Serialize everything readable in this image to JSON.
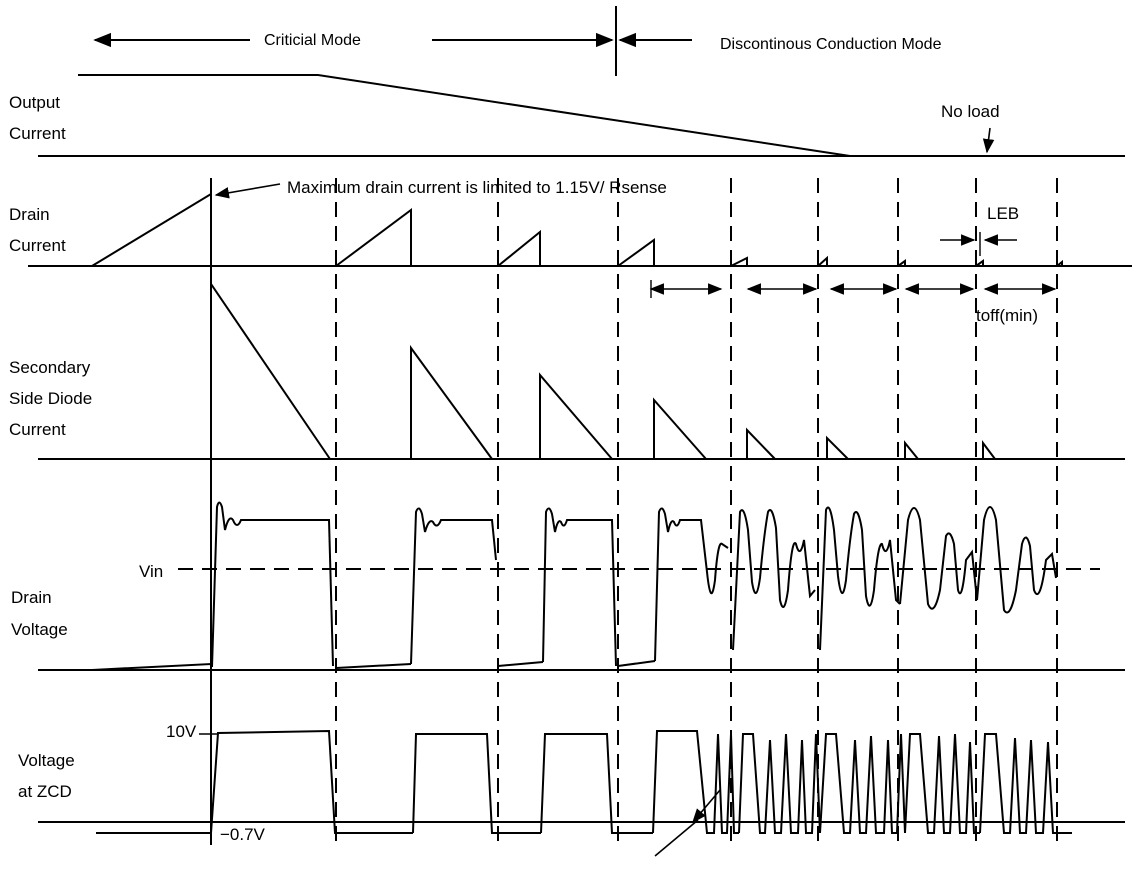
{
  "modes": {
    "critical": "Criticial Mode",
    "discontinuous": "Discontinous Conduction Mode"
  },
  "signals": {
    "output_current": [
      "Output",
      "Current"
    ],
    "drain_current": [
      "Drain",
      "Current"
    ],
    "secondary_diode_current": [
      "Secondary",
      "Side Diode",
      "Current"
    ],
    "drain_voltage": [
      "Drain",
      "Voltage"
    ],
    "voltage_zcd": [
      "Voltage",
      "at ZCD"
    ]
  },
  "annotations": {
    "max_drain": "Maximum drain current is limited to 1.15V/ Rsense",
    "no_load": "No load",
    "leb": "LEB",
    "toff_min": "toff(min)",
    "vin": "Vin",
    "zcd_high": "10V",
    "zcd_low": "−0.7V"
  },
  "colors": {
    "ink": "#000000",
    "background": "#ffffff"
  }
}
